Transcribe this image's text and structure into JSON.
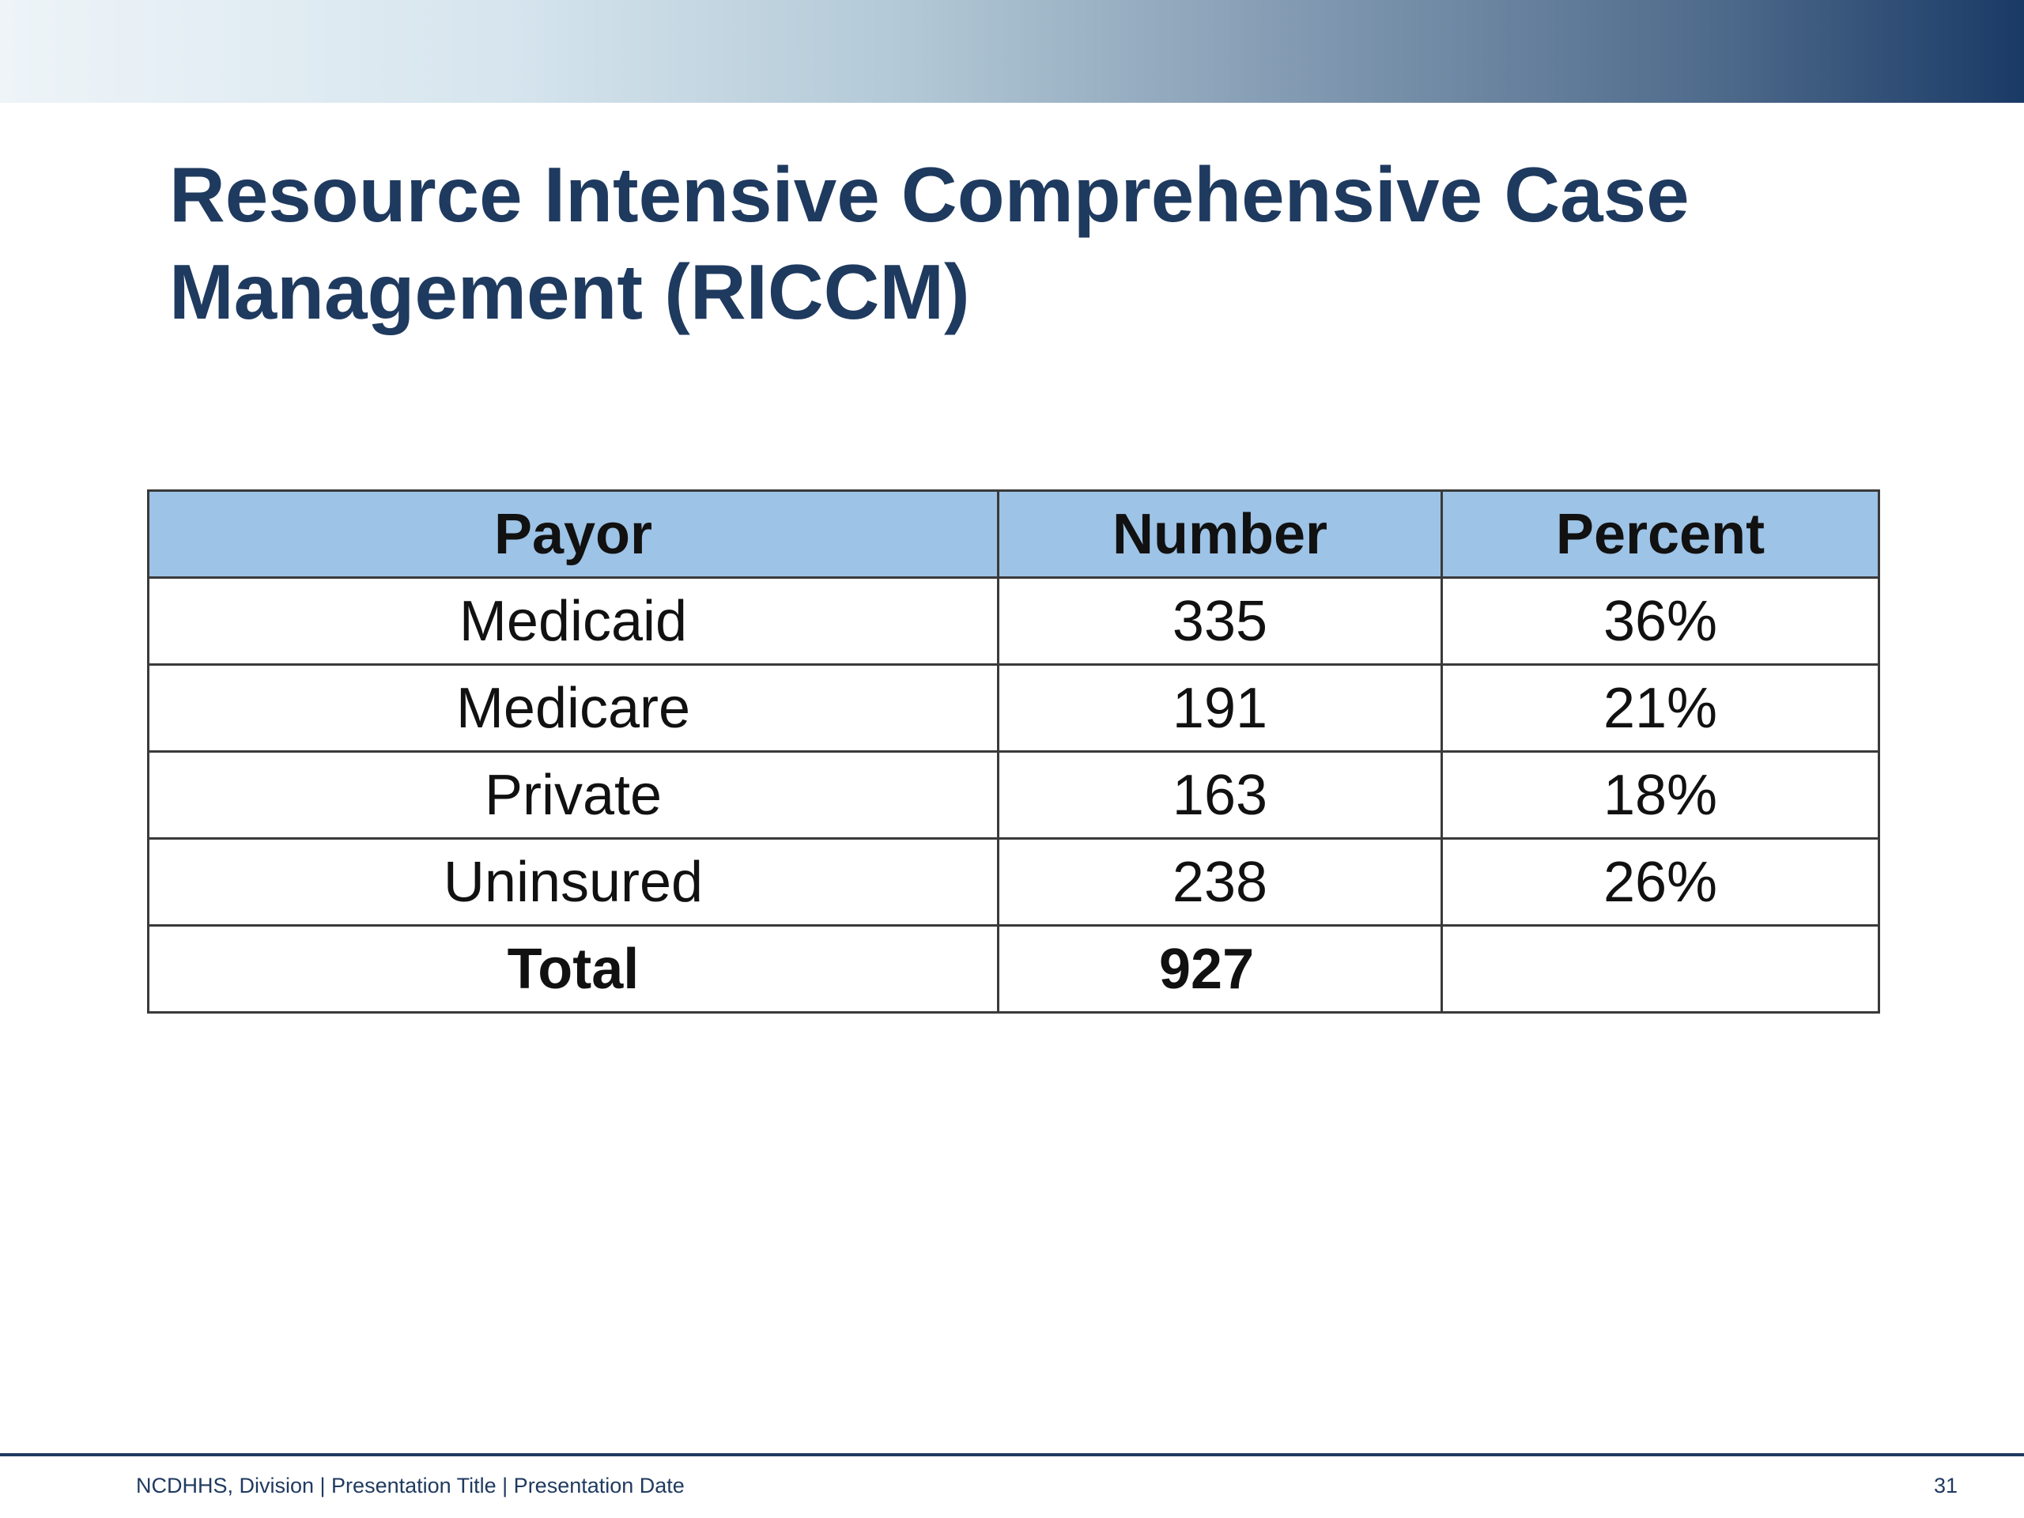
{
  "slide": {
    "title_line1": "Resource Intensive Comprehensive Case",
    "title_line2": "Management (RICCM)",
    "footer": "NCDHHS, Division | Presentation Title | Presentation Date",
    "page_number": "31"
  },
  "colors": {
    "title": "#1f3a5f",
    "header_fill": "#9dc3e6",
    "banner_dark": "#1a3a66",
    "banner_light": "#eef4f8"
  },
  "chart_data": {
    "type": "table",
    "columns": [
      "Payor",
      "Number",
      "Percent"
    ],
    "rows": [
      [
        "Medicaid",
        "335",
        "36%"
      ],
      [
        "Medicare",
        "191",
        "21%"
      ],
      [
        "Private",
        "163",
        "18%"
      ],
      [
        "Uninsured",
        "238",
        "26%"
      ]
    ],
    "total": {
      "label": "Total",
      "number": "927"
    }
  }
}
